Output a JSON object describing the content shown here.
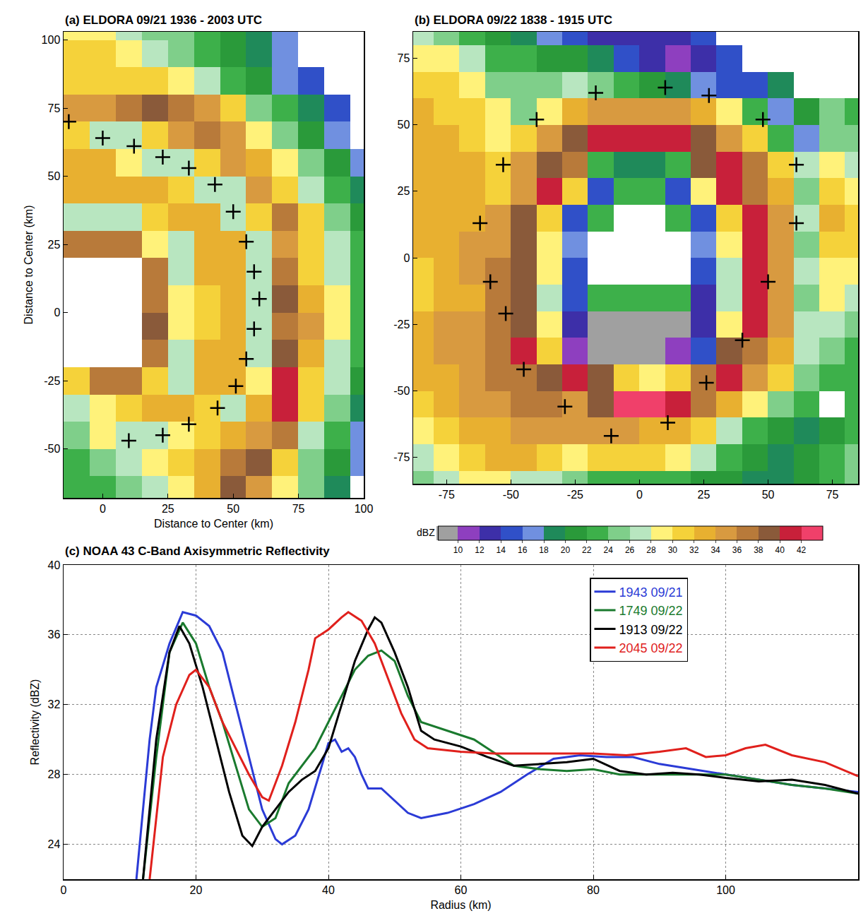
{
  "chart_data": [
    {
      "type": "heatmap",
      "title": "(a) ELDORA 09/21 1936 - 2003 UTC",
      "xlabel": "Distance to Center (km)",
      "ylabel": "Distance to Center (km)",
      "xlim": [
        -15,
        100
      ],
      "xticks": [
        0,
        25,
        50,
        75,
        100
      ],
      "ylim": [
        -68,
        103
      ],
      "yticks": [
        -50,
        -25,
        0,
        25,
        50,
        75,
        100
      ],
      "zlim": [
        8,
        44
      ],
      "x": [
        -10,
        0,
        10,
        20,
        30,
        40,
        50,
        60,
        70,
        80,
        90,
        100
      ],
      "y": [
        -65,
        -55,
        -45,
        -35,
        -25,
        -15,
        -5,
        5,
        15,
        25,
        35,
        45,
        55,
        65,
        75,
        85,
        95,
        105
      ],
      "cells": [
        [
          22,
          22,
          24,
          26,
          28,
          32,
          38,
          34,
          28,
          24,
          18,
          null
        ],
        [
          22,
          24,
          26,
          28,
          30,
          32,
          36,
          38,
          30,
          24,
          20,
          16
        ],
        [
          24,
          28,
          27,
          27,
          28,
          30,
          32,
          34,
          36,
          26,
          22,
          16
        ],
        [
          26,
          28,
          30,
          32,
          32,
          30,
          27,
          32,
          40,
          30,
          24,
          18
        ],
        [
          30,
          36,
          37,
          30,
          26,
          32,
          32,
          28,
          40,
          30,
          26,
          20
        ],
        [
          null,
          null,
          null,
          37,
          26,
          32,
          33,
          27,
          38,
          32,
          26,
          22
        ],
        [
          null,
          null,
          null,
          38,
          28,
          30,
          33,
          27,
          36,
          34,
          28,
          22
        ],
        [
          null,
          null,
          null,
          37,
          28,
          30,
          33,
          27,
          38,
          32,
          28,
          22
        ],
        [
          null,
          null,
          null,
          37,
          26,
          32,
          32,
          27,
          36,
          30,
          26,
          22
        ],
        [
          36,
          37,
          36,
          28,
          26,
          32,
          32,
          27,
          35,
          30,
          26,
          22
        ],
        [
          26,
          27,
          27,
          30,
          32,
          32,
          27,
          30,
          36,
          30,
          24,
          20
        ],
        [
          32,
          32,
          32,
          32,
          30,
          27,
          27,
          34,
          30,
          26,
          22,
          18
        ],
        [
          32,
          32,
          28,
          27,
          27,
          30,
          34,
          32,
          28,
          24,
          20,
          16
        ],
        [
          30,
          27,
          27,
          30,
          34,
          36,
          34,
          28,
          24,
          20,
          16,
          null
        ],
        [
          34,
          34,
          36,
          38,
          36,
          34,
          30,
          24,
          22,
          18,
          14,
          null
        ],
        [
          30,
          30,
          30,
          30,
          28,
          26,
          22,
          20,
          16,
          14,
          null,
          null
        ],
        [
          30,
          30,
          28,
          26,
          24,
          22,
          20,
          18,
          16,
          null,
          null,
          null
        ],
        [
          28,
          28,
          26,
          24,
          24,
          22,
          20,
          18,
          16,
          null,
          null,
          null
        ]
      ],
      "series": [
        {
          "type": "scatter",
          "color": "#000000",
          "marker": "cross",
          "x": [
            -13,
            0,
            12,
            23,
            33,
            43,
            50,
            55,
            58,
            60,
            58,
            55,
            51,
            44,
            33,
            23,
            10
          ],
          "values": [
            70,
            64,
            61,
            57,
            53,
            47,
            37,
            26,
            15,
            5,
            -6,
            -17,
            -27,
            -35,
            -41,
            -45,
            -47
          ]
        }
      ]
    },
    {
      "type": "heatmap",
      "title": "(b) ELDORA 09/22 1838 - 1915 UTC",
      "xlim": [
        -88,
        85
      ],
      "xticks": [
        -75,
        -50,
        -25,
        0,
        25,
        50,
        75
      ],
      "ylim": [
        -85,
        85
      ],
      "yticks": [
        -75,
        -50,
        -25,
        0,
        25,
        50,
        75
      ],
      "zlim": [
        8,
        44
      ],
      "zticks": [
        10,
        12,
        14,
        16,
        18,
        20,
        22,
        24,
        26,
        28,
        30,
        32,
        34,
        36,
        38,
        40,
        42
      ],
      "colorbar_title": "dBZ",
      "x": [
        -85,
        -75,
        -65,
        -55,
        -45,
        -35,
        -25,
        -15,
        -5,
        5,
        15,
        25,
        35,
        45,
        55,
        65,
        75,
        85
      ],
      "y": [
        -85,
        -75,
        -65,
        -55,
        -45,
        -35,
        -25,
        -15,
        -5,
        5,
        15,
        25,
        35,
        45,
        55,
        65,
        75,
        85
      ],
      "cells": [
        [
          24,
          26,
          28,
          28,
          26,
          26,
          24,
          22,
          22,
          22,
          22,
          20,
          20,
          18,
          18,
          20,
          22,
          24
        ],
        [
          26,
          28,
          30,
          32,
          32,
          30,
          28,
          30,
          30,
          30,
          28,
          26,
          22,
          20,
          18,
          20,
          22,
          24
        ],
        [
          28,
          30,
          32,
          32,
          34,
          34,
          34,
          34,
          34,
          32,
          32,
          30,
          26,
          22,
          20,
          18,
          20,
          22
        ],
        [
          30,
          32,
          34,
          34,
          36,
          36,
          34,
          38,
          42,
          42,
          40,
          36,
          32,
          28,
          24,
          22,
          null,
          22
        ],
        [
          32,
          32,
          34,
          36,
          36,
          38,
          40,
          38,
          30,
          28,
          30,
          36,
          40,
          34,
          30,
          24,
          22,
          22
        ],
        [
          32,
          34,
          34,
          36,
          40,
          30,
          10,
          8,
          8,
          8,
          10,
          14,
          38,
          36,
          32,
          26,
          24,
          22
        ],
        [
          32,
          34,
          34,
          36,
          38,
          28,
          12,
          8,
          8,
          8,
          8,
          12,
          28,
          40,
          34,
          26,
          26,
          24
        ],
        [
          30,
          32,
          32,
          36,
          38,
          26,
          14,
          22,
          22,
          22,
          22,
          12,
          26,
          40,
          34,
          24,
          28,
          26
        ],
        [
          30,
          32,
          34,
          36,
          38,
          28,
          14,
          null,
          null,
          null,
          null,
          14,
          26,
          40,
          34,
          26,
          28,
          28
        ],
        [
          32,
          32,
          34,
          34,
          38,
          28,
          16,
          null,
          null,
          null,
          null,
          16,
          28,
          40,
          34,
          24,
          30,
          30
        ],
        [
          32,
          32,
          32,
          34,
          38,
          30,
          14,
          22,
          null,
          null,
          22,
          14,
          30,
          40,
          34,
          26,
          32,
          30
        ],
        [
          32,
          32,
          32,
          30,
          34,
          40,
          30,
          14,
          22,
          22,
          14,
          28,
          40,
          36,
          32,
          24,
          30,
          28
        ],
        [
          32,
          32,
          32,
          30,
          34,
          38,
          36,
          22,
          18,
          18,
          22,
          38,
          40,
          36,
          30,
          26,
          28,
          26
        ],
        [
          32,
          32,
          30,
          28,
          30,
          34,
          38,
          40,
          41,
          41,
          40,
          38,
          34,
          30,
          22,
          16,
          24,
          24
        ],
        [
          32,
          30,
          30,
          28,
          24,
          28,
          32,
          34,
          34,
          34,
          34,
          32,
          28,
          22,
          16,
          20,
          24,
          22
        ],
        [
          30,
          30,
          28,
          24,
          24,
          24,
          26,
          24,
          22,
          20,
          18,
          16,
          14,
          14,
          18,
          null,
          null,
          null
        ],
        [
          28,
          28,
          26,
          22,
          22,
          20,
          20,
          18,
          14,
          12,
          10,
          12,
          14,
          null,
          null,
          null,
          null,
          null
        ],
        [
          26,
          24,
          22,
          20,
          18,
          16,
          14,
          12,
          12,
          12,
          12,
          14,
          null,
          null,
          null,
          null,
          null,
          null
        ]
      ],
      "series": [
        {
          "type": "scatter",
          "color": "#000000",
          "marker": "cross",
          "x": [
            -17,
            -40,
            -53,
            -62,
            -58,
            -52,
            -45,
            -29,
            -11,
            11,
            26,
            40,
            50,
            61,
            61,
            48,
            27,
            10
          ],
          "values": [
            62,
            52,
            35,
            13,
            -9,
            -21,
            -42,
            -56,
            -67,
            -62,
            -47,
            -31,
            -9,
            13,
            35,
            52,
            61,
            64
          ]
        }
      ]
    },
    {
      "type": "line",
      "title": "(c) NOAA 43 C-Band Axisymmetric Reflectivity",
      "xlabel": "Radius (km)",
      "ylabel": "Reflectivity (dBZ)",
      "xlim": [
        0,
        120
      ],
      "xticks": [
        0,
        20,
        40,
        60,
        80,
        100
      ],
      "ylim": [
        22,
        40
      ],
      "yticks": [
        24,
        28,
        32,
        36,
        40
      ],
      "grid": true,
      "legend": "upper right",
      "series": [
        {
          "name": "1943 09/21",
          "color": "#2b3bd6",
          "x": [
            11,
            13,
            14,
            16,
            18,
            20,
            22,
            24,
            26,
            28,
            30,
            32,
            33,
            35,
            37,
            39,
            40,
            41,
            42,
            43,
            44,
            45,
            46,
            48,
            50,
            52,
            54,
            58,
            62,
            66,
            70,
            74,
            78,
            82,
            86,
            90,
            95,
            100,
            105,
            110,
            115,
            120
          ],
          "values": [
            22,
            30,
            33,
            35.5,
            37.3,
            37.1,
            36.5,
            35,
            32,
            29,
            26,
            24.3,
            24,
            24.5,
            26,
            28.5,
            29.8,
            30,
            29.3,
            29.5,
            29,
            28,
            27.2,
            27.2,
            26.5,
            25.8,
            25.5,
            25.8,
            26.3,
            27,
            28,
            28.9,
            29.1,
            29,
            29,
            28.6,
            28.3,
            28,
            27.7,
            27.4,
            27.2,
            27
          ]
        },
        {
          "name": "1749 09/22",
          "color": "#1a7a2e",
          "x": [
            12,
            14,
            16,
            18,
            20,
            22,
            24,
            26,
            28,
            30,
            32,
            34,
            36,
            38,
            40,
            42,
            44,
            46,
            48,
            50,
            52,
            54,
            58,
            62,
            64,
            68,
            72,
            76,
            80,
            84,
            88,
            92,
            96,
            100,
            105,
            110,
            115,
            120
          ],
          "values": [
            22,
            29,
            35,
            36.7,
            35.5,
            33,
            31,
            28.5,
            26,
            25,
            25.5,
            27.5,
            28.5,
            29.5,
            31,
            32.5,
            34,
            34.8,
            35.1,
            34.5,
            32.5,
            31,
            30.5,
            30,
            29.5,
            28.5,
            28.3,
            28.2,
            28.3,
            28,
            28,
            28,
            28,
            28,
            27.7,
            27.4,
            27.2,
            26.9
          ]
        },
        {
          "name": "1913 09/22",
          "color": "#000000",
          "x": [
            12,
            14,
            16,
            17.5,
            19,
            21,
            23,
            25,
            27,
            28.5,
            30,
            32,
            34,
            36,
            38,
            40,
            42,
            44,
            46,
            47,
            48,
            50,
            52,
            54,
            56,
            60,
            64,
            68,
            72,
            76,
            80,
            84,
            88,
            92,
            96,
            100,
            105,
            110,
            115,
            120
          ],
          "values": [
            22,
            30,
            35,
            36.5,
            35.5,
            33,
            30,
            27,
            24.5,
            23.9,
            25,
            26,
            27,
            27.7,
            28.2,
            29.5,
            32,
            34.5,
            36.3,
            37,
            36.7,
            35,
            33,
            30.5,
            30,
            29.6,
            29,
            28.5,
            28.6,
            28.7,
            28.9,
            28.2,
            28,
            28.1,
            28,
            27.8,
            27.6,
            27.7,
            27.4,
            26.9
          ]
        },
        {
          "name": "2045 09/22",
          "color": "#e0201c",
          "x": [
            13,
            15,
            17,
            19,
            20,
            22,
            24,
            26,
            28,
            30,
            31,
            33,
            35,
            37,
            38,
            40,
            42,
            43,
            45,
            47,
            49,
            51,
            53,
            55,
            60,
            65,
            70,
            75,
            80,
            85,
            90,
            94,
            97,
            100,
            103,
            106,
            110,
            115,
            120
          ],
          "values": [
            22,
            29,
            32,
            33.7,
            34,
            33,
            31,
            29.5,
            28,
            26.7,
            26.5,
            28.5,
            31,
            34,
            35.8,
            36.3,
            37,
            37.3,
            36.8,
            35.5,
            33.5,
            31.5,
            30,
            29.5,
            29.3,
            29.2,
            29.2,
            29.2,
            29.2,
            29.1,
            29.3,
            29.5,
            29,
            29.1,
            29.5,
            29.7,
            29.1,
            28.7,
            27.9
          ]
        }
      ]
    }
  ]
}
